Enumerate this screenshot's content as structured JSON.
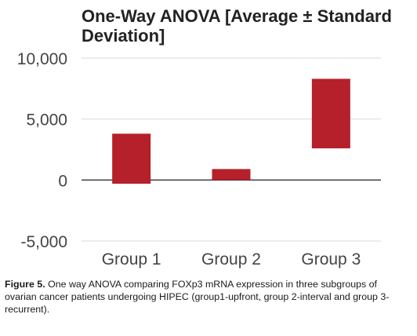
{
  "chart_data": {
    "type": "bar",
    "subtype": "floating-range",
    "title": "One-Way ANOVA [Average ± Standard Deviation]",
    "categories": [
      "Group 1",
      "Group 2",
      "Group 3"
    ],
    "ranges": [
      {
        "low": -300,
        "high": 3800
      },
      {
        "low": 0,
        "high": 900
      },
      {
        "low": 2600,
        "high": 8300
      }
    ],
    "ylim": [
      -5000,
      10000
    ],
    "yticks": [
      -5000,
      0,
      5000,
      10000
    ],
    "ytick_labels": [
      "-5,000",
      "0",
      "5,000",
      "10,000"
    ],
    "grid": true,
    "legend": "none",
    "bar_color": "#b5202a",
    "grid_color": "#d9d9d9",
    "axis_color": "#333333"
  },
  "caption": {
    "lead": "Figure 5.",
    "text": " One way ANOVA comparing FOXp3 mRNA expression in three subgroups of ovarian cancer patients undergoing HIPEC (group1-upfront, group 2-interval and group 3- recurrent)."
  }
}
